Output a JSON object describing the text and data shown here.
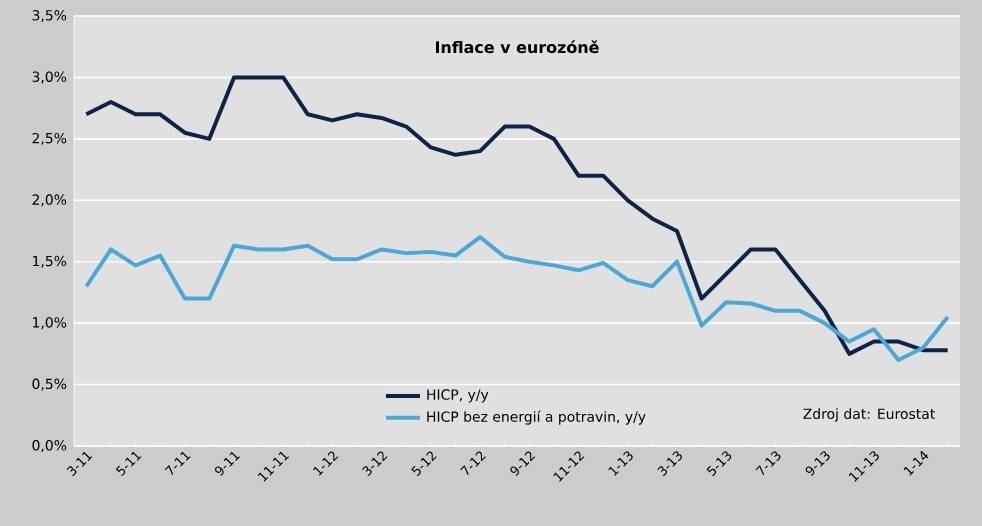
{
  "chart_data": {
    "type": "line",
    "title": "Inflace v eurozóně",
    "categories": [
      "3-11",
      null,
      "5-11",
      null,
      "7-11",
      null,
      "9-11",
      null,
      "11-11",
      null,
      "1-12",
      null,
      "3-12",
      null,
      "5-12",
      null,
      "7-12",
      null,
      "9-12",
      null,
      "11-12",
      null,
      "1-13",
      null,
      "3-13",
      null,
      "5-13",
      null,
      "7-13",
      null,
      "9-13",
      null,
      "11-13",
      null,
      "1-14",
      null
    ],
    "series": [
      {
        "name": "HICP, y/y",
        "color": "#0d2449",
        "values": [
          2.7,
          2.8,
          2.7,
          2.7,
          2.55,
          2.5,
          3.0,
          3.0,
          3.0,
          2.7,
          2.65,
          2.7,
          2.67,
          2.6,
          2.43,
          2.37,
          2.4,
          2.6,
          2.6,
          2.5,
          2.2,
          2.2,
          2.0,
          1.85,
          1.75,
          1.2,
          1.4,
          1.6,
          1.6,
          1.35,
          1.1,
          0.75,
          0.85,
          0.85,
          0.78,
          0.78
        ]
      },
      {
        "name": "HICP bez energií a potravin, y/y",
        "color": "#4aa8d8",
        "values": [
          1.3,
          1.6,
          1.47,
          1.55,
          1.2,
          1.2,
          1.63,
          1.6,
          1.6,
          1.63,
          1.52,
          1.52,
          1.6,
          1.57,
          1.58,
          1.55,
          1.7,
          1.54,
          1.5,
          1.47,
          1.43,
          1.49,
          1.35,
          1.3,
          1.5,
          0.98,
          1.17,
          1.16,
          1.1,
          1.1,
          1.0,
          0.85,
          0.95,
          0.7,
          0.8,
          1.05
        ]
      }
    ],
    "ylim": [
      0,
      3.5
    ],
    "yticks": [
      {
        "value": 0,
        "label": "0,0%"
      },
      {
        "value": 0.5,
        "label": "0,5%"
      },
      {
        "value": 1,
        "label": "1,0%"
      },
      {
        "value": 1.5,
        "label": "1,5%"
      },
      {
        "value": 2,
        "label": "2,0%"
      },
      {
        "value": 2.5,
        "label": "2,5%"
      },
      {
        "value": 3,
        "label": "3,0%"
      },
      {
        "value": 3.5,
        "label": "3,5%"
      }
    ],
    "grid": "y",
    "legend": "bottom",
    "marker": "none",
    "line_style": "solid",
    "annotations": [
      "Zdroj dat: Eurostat"
    ]
  }
}
